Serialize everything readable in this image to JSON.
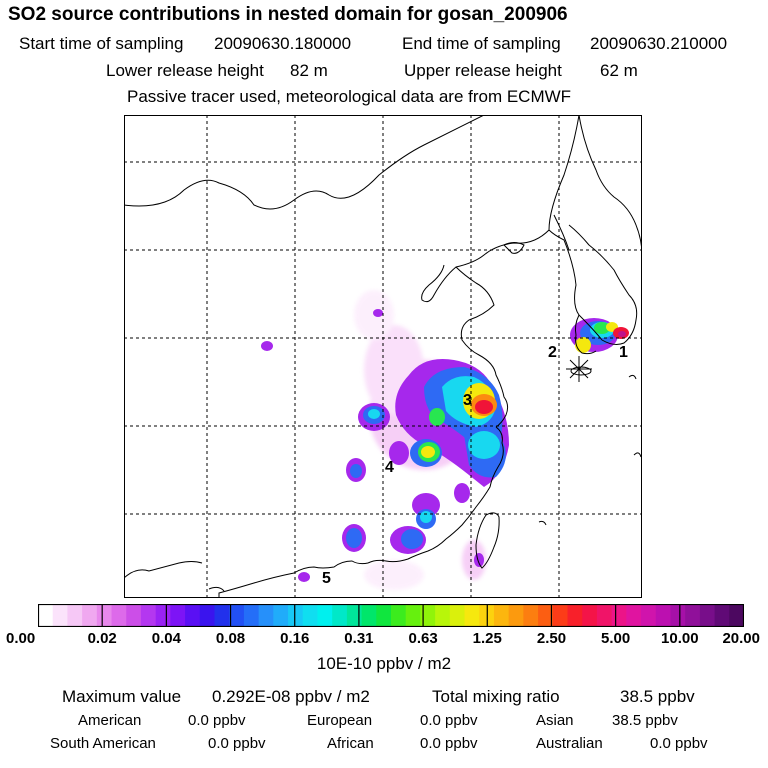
{
  "title": "SO2 source contributions in nested domain for gosan_200906",
  "sampling": {
    "start_label": "Start time of sampling",
    "start_value": "20090630.180000",
    "end_label": "End time of sampling",
    "end_value": "20090630.210000"
  },
  "release": {
    "lower_label": "Lower release height",
    "lower_value": "82 m",
    "upper_label": "Upper release height",
    "upper_value": "62 m"
  },
  "note": "Passive tracer used, meteorological data are from ECMWF",
  "map": {
    "source_labels": [
      "1",
      "2",
      "3",
      "4",
      "5"
    ],
    "receptor_marker": "asterisk"
  },
  "colorbar": {
    "ticks": [
      "0.00",
      "0.02",
      "0.04",
      "0.08",
      "0.16",
      "0.31",
      "0.63",
      "1.25",
      "2.50",
      "5.00",
      "10.00",
      "20.00"
    ],
    "colors": [
      "#ffffff",
      "#fbe3fb",
      "#f6c8f6",
      "#f0a8f0",
      "#e888ec",
      "#dd6aea",
      "#cc4ee8",
      "#b437f0",
      "#9a22f4",
      "#7d14f6",
      "#5a10f4",
      "#3a14ee",
      "#2231ec",
      "#2250f4",
      "#246ef8",
      "#2690fa",
      "#20acfa",
      "#18c8f6",
      "#10def0",
      "#00f0ee",
      "#00e8c8",
      "#00e69a",
      "#00e66a",
      "#10e63e",
      "#3cec1e",
      "#66f00e",
      "#90f40a",
      "#b8f60a",
      "#daf00c",
      "#f6e80e",
      "#fcd20e",
      "#fcb60e",
      "#fc9a0e",
      "#fc7e10",
      "#fc5e12",
      "#fc3c18",
      "#f8202a",
      "#f41448",
      "#f01468",
      "#ec1488",
      "#e014a0",
      "#d014ac",
      "#bc10b0",
      "#a610a8",
      "#90109a",
      "#780e8a",
      "#600a76",
      "#4c0860"
    ],
    "units": "10E-10 ppbv / m2"
  },
  "stats": {
    "max_label": "Maximum value",
    "max_value": "0.292E-08 ppbv / m2",
    "total_label": "Total mixing ratio",
    "total_value": "38.5 ppbv"
  },
  "regions": [
    {
      "name": "American",
      "value": "0.0 ppbv"
    },
    {
      "name": "European",
      "value": "0.0 ppbv"
    },
    {
      "name": "Asian",
      "value": "38.5 ppbv"
    },
    {
      "name": "South American",
      "value": "0.0 ppbv"
    },
    {
      "name": "African",
      "value": "0.0 ppbv"
    },
    {
      "name": "Australian",
      "value": "0.0 ppbv"
    }
  ]
}
